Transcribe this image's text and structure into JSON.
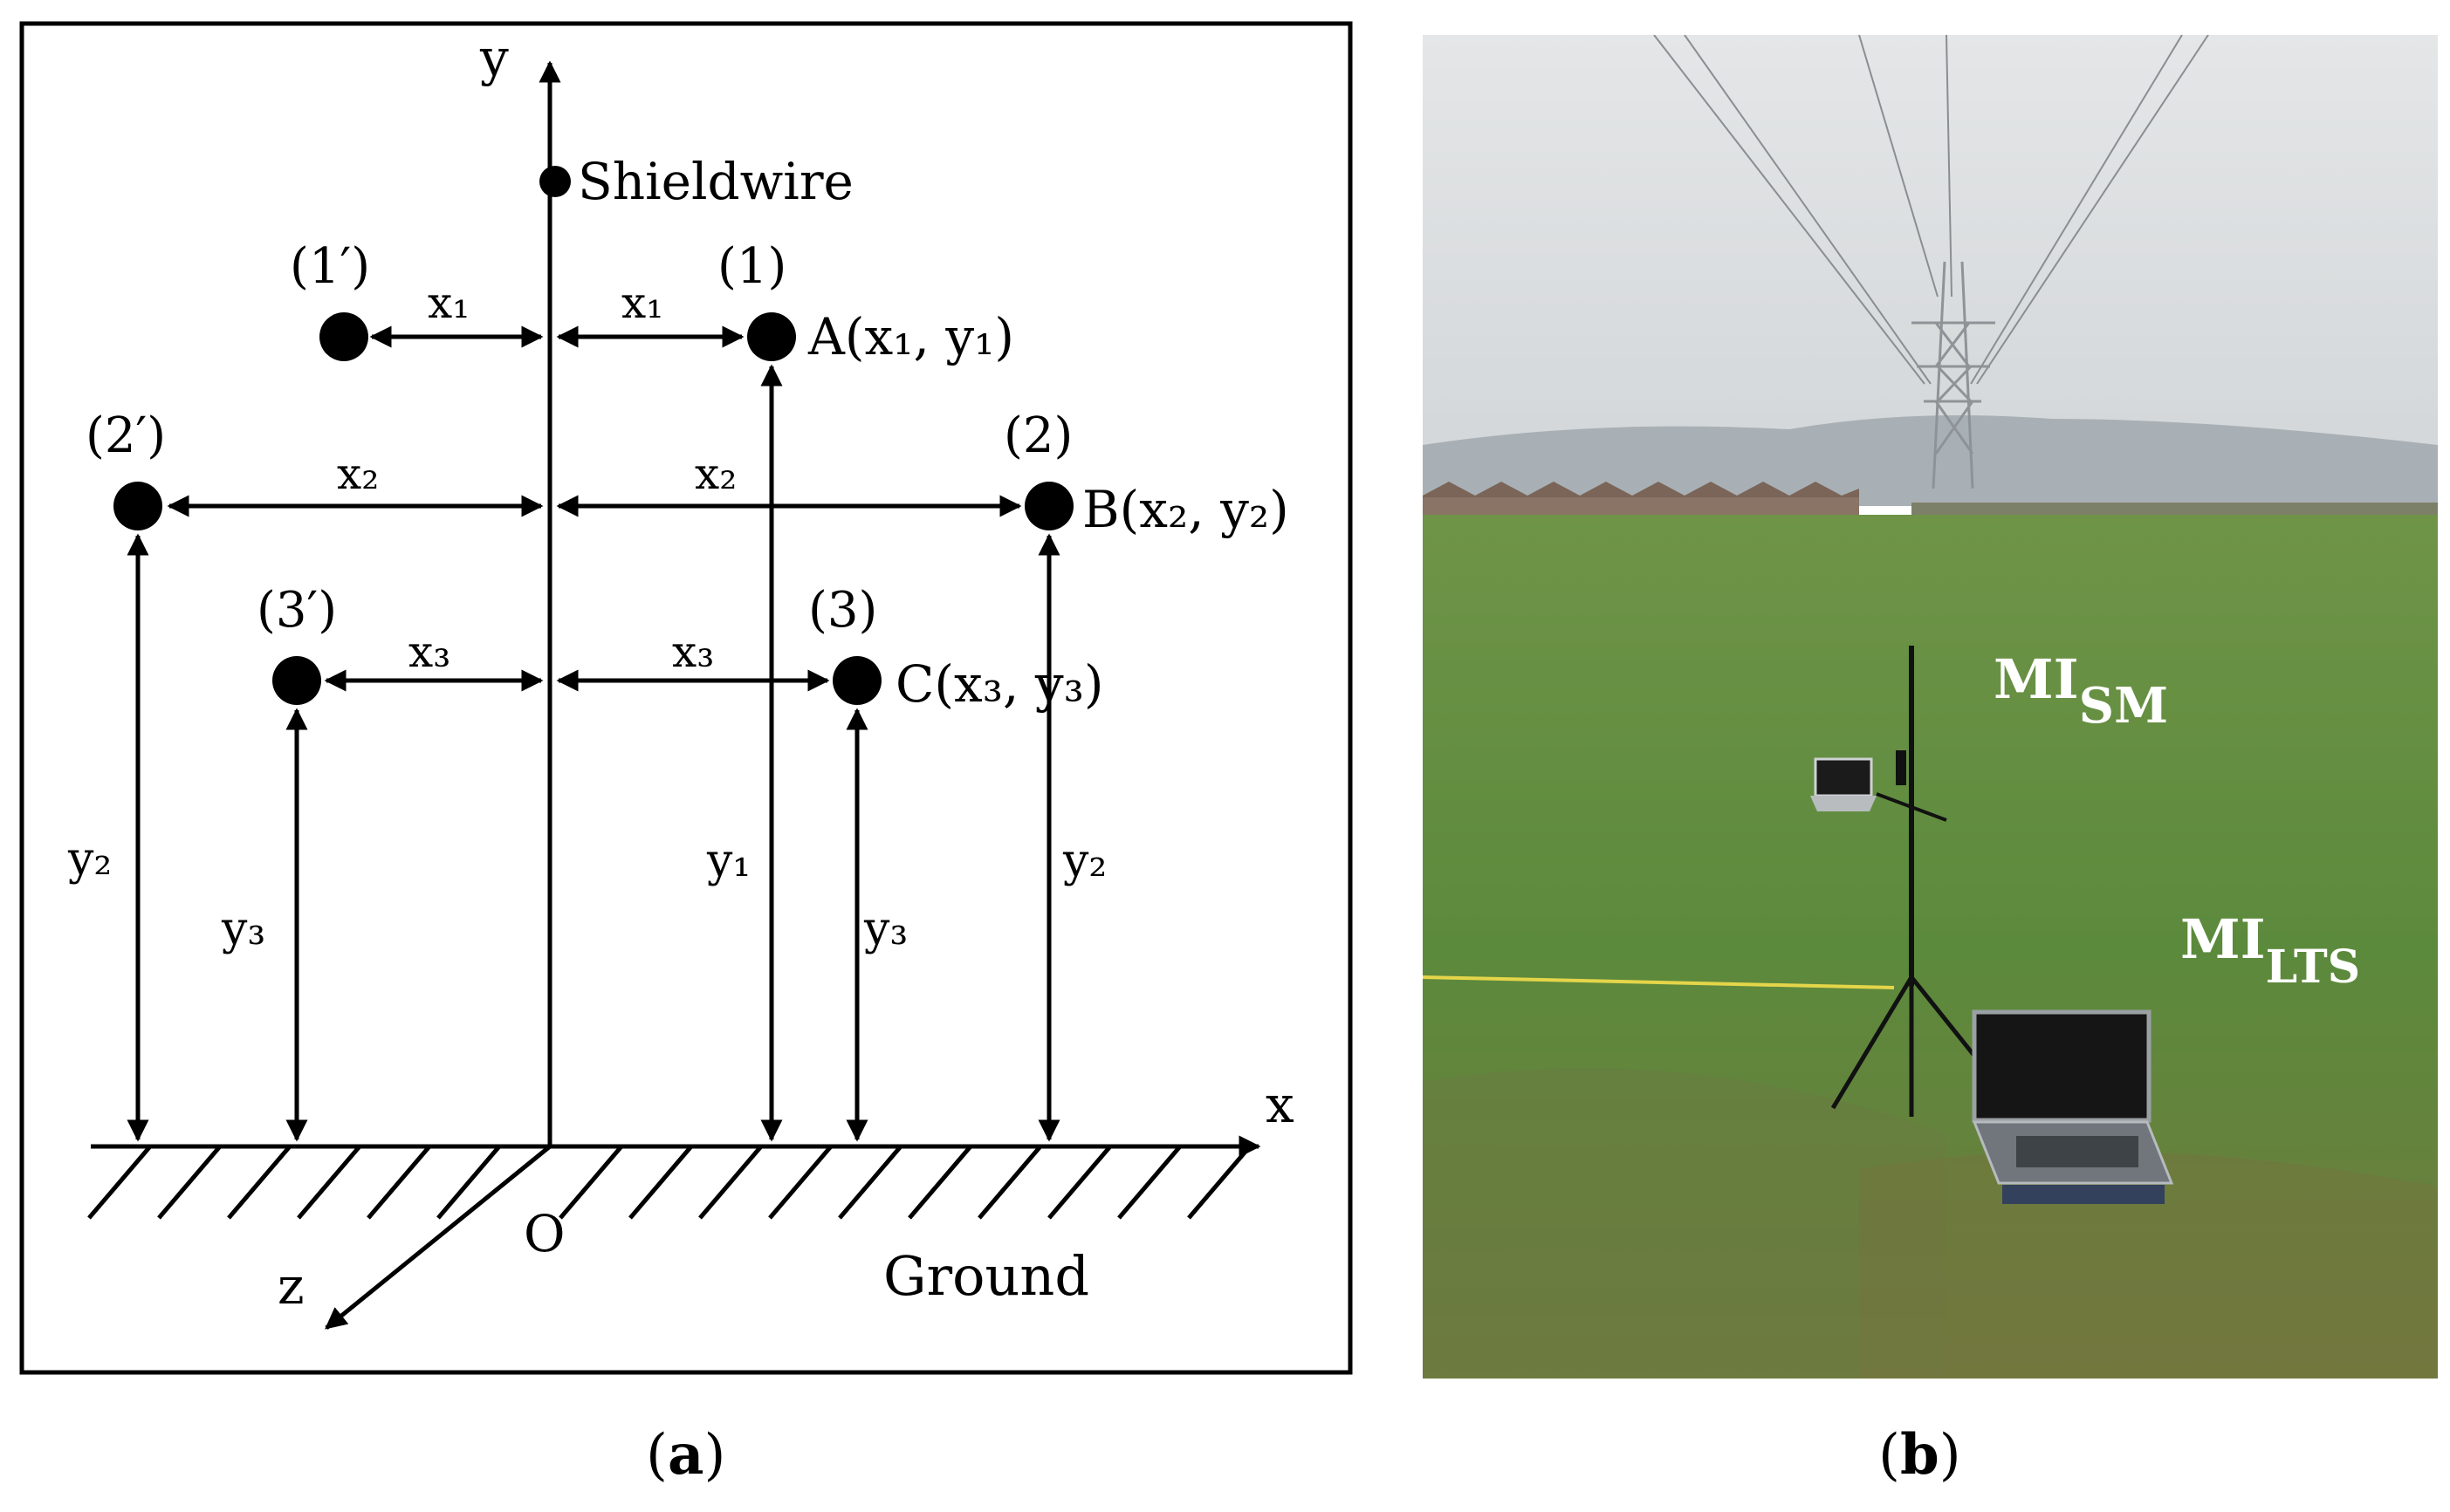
{
  "figure": {
    "panel_a": {
      "caption_letter": "a",
      "axes": {
        "y": "y",
        "x": "x",
        "z": "z",
        "origin": "O"
      },
      "ground_label": "Ground",
      "shield_wire_label": "Shieldwire",
      "conductors": [
        {
          "id": "1",
          "tag": "(1)",
          "mirror_tag": "(1′)",
          "coord_label": "A(x₁, y₁)",
          "x_label": "x₁",
          "y_label": "y₁"
        },
        {
          "id": "2",
          "tag": "(2)",
          "mirror_tag": "(2′)",
          "coord_label": "B(x₂, y₂)",
          "x_label": "x₂",
          "y_label": "y₂"
        },
        {
          "id": "3",
          "tag": "(3)",
          "mirror_tag": "(3′)",
          "coord_label": "C(x₃, y₃)",
          "x_label": "x₃",
          "y_label": "y₃"
        }
      ]
    },
    "panel_b": {
      "caption_letter": "b",
      "label_sm_main": "MI",
      "label_sm_sub": "SM",
      "label_lts_main": "MI",
      "label_lts_sub": "LTS"
    }
  },
  "colors": {
    "line": "#000000",
    "sky": "#dfe1e2",
    "field": "#5f8a3e",
    "photo_label": "#ffffff"
  }
}
